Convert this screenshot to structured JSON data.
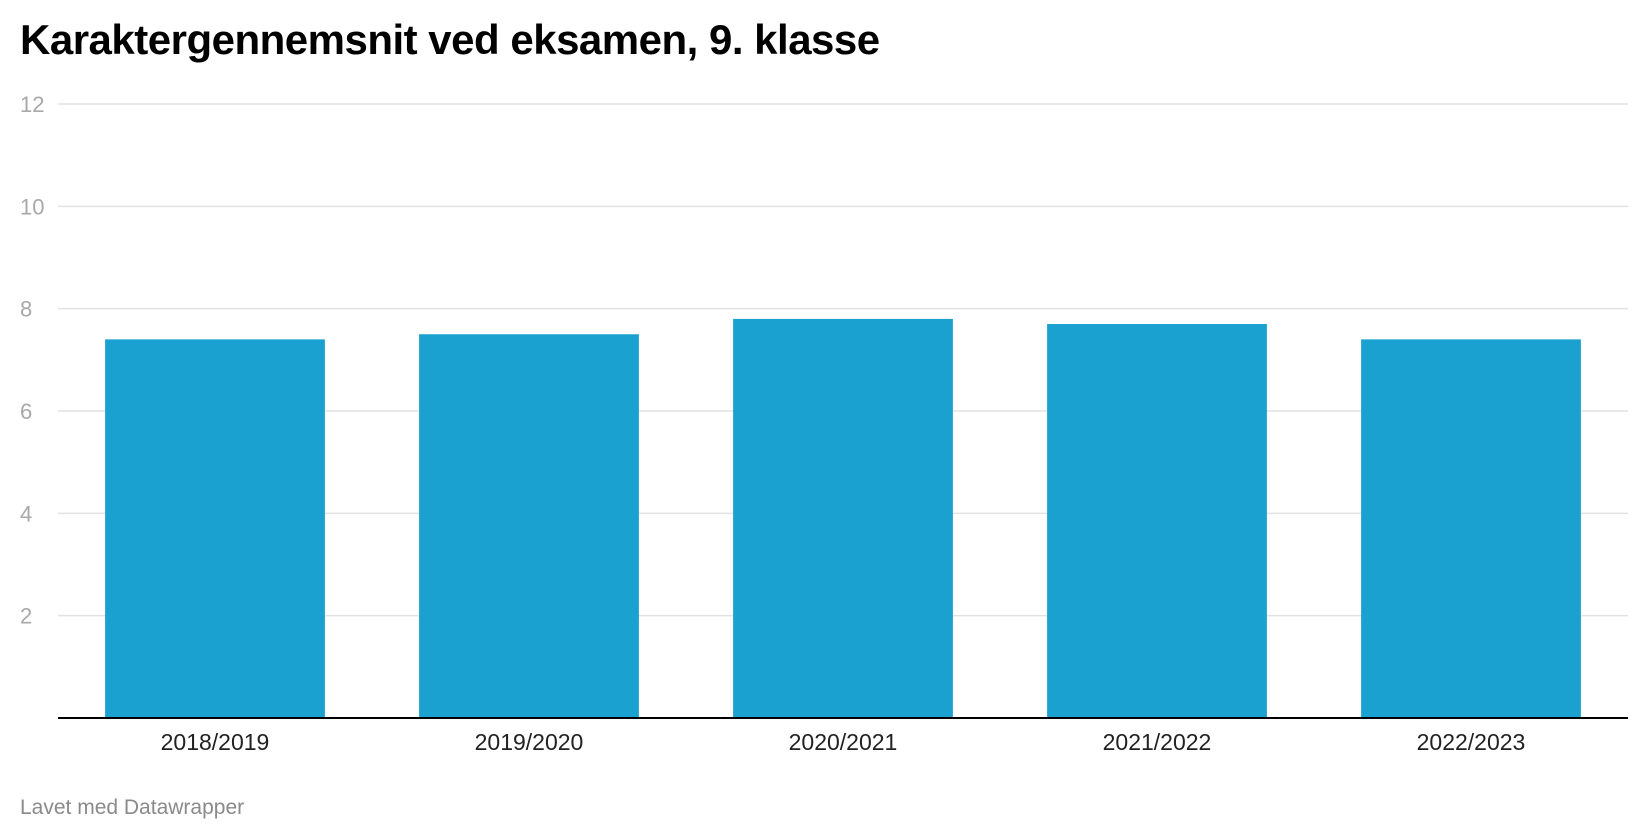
{
  "chart_data": {
    "type": "bar",
    "title": "Karaktergennemsnit ved eksamen, 9. klasse",
    "categories": [
      "2018/2019",
      "2019/2020",
      "2020/2021",
      "2021/2022",
      "2022/2023"
    ],
    "values": [
      7.4,
      7.5,
      7.8,
      7.7,
      7.4
    ],
    "xlabel": "",
    "ylabel": "",
    "ylim": [
      0,
      12
    ],
    "yticks": [
      2,
      4,
      6,
      8,
      10,
      12
    ],
    "grid": true,
    "legend": "none"
  },
  "footer": {
    "credit": "Lavet med Datawrapper"
  },
  "colors": {
    "bar": "#1ba1cf",
    "grid": "#e2e2e2",
    "baseline": "#000000",
    "tick_label": "#a8a8a8",
    "category_label": "#222222"
  }
}
